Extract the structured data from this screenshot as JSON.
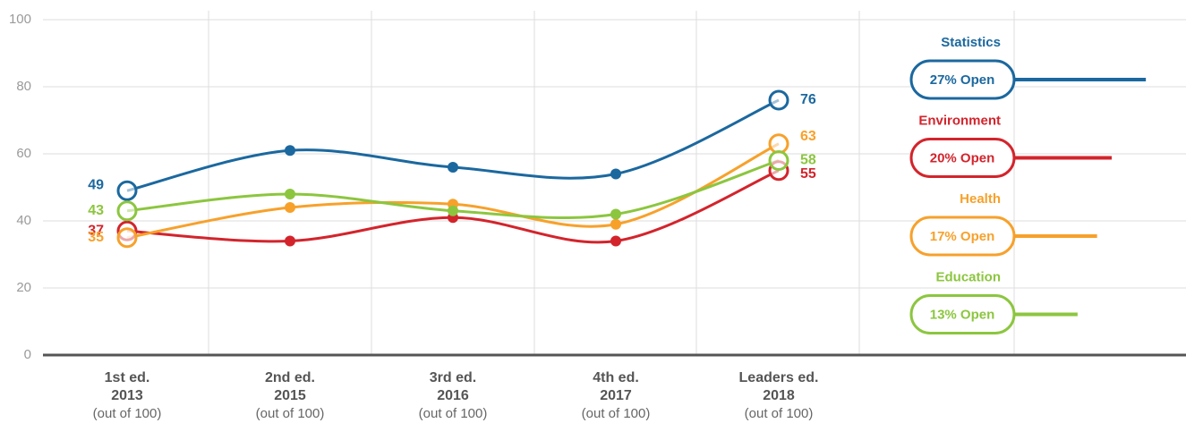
{
  "chart_data": {
    "type": "line",
    "categories": [
      "1st ed.",
      "2nd ed.",
      "3rd ed.",
      "4th ed.",
      "Leaders ed."
    ],
    "category_years": [
      "2013",
      "2015",
      "2016",
      "2017",
      "2018"
    ],
    "category_note": "(out of 100)",
    "ylim": [
      0,
      100
    ],
    "yticks": [
      0,
      20,
      40,
      60,
      80,
      100
    ],
    "grid": true,
    "series": [
      {
        "name": "Statistics",
        "color": "#1b689f",
        "values": [
          49,
          61,
          56,
          54,
          76
        ],
        "open_share": 27,
        "open_label": "27% Open"
      },
      {
        "name": "Environment",
        "color": "#d3242c",
        "values": [
          37,
          34,
          41,
          34,
          55
        ],
        "open_share": 20,
        "open_label": "20% Open"
      },
      {
        "name": "Health",
        "color": "#f7a12b",
        "values": [
          35,
          44,
          45,
          39,
          63
        ],
        "open_share": 17,
        "open_label": "17% Open"
      },
      {
        "name": "Education",
        "color": "#8cc63f",
        "values": [
          43,
          48,
          43,
          42,
          58
        ],
        "open_share": 13,
        "open_label": "13% Open"
      }
    ]
  }
}
